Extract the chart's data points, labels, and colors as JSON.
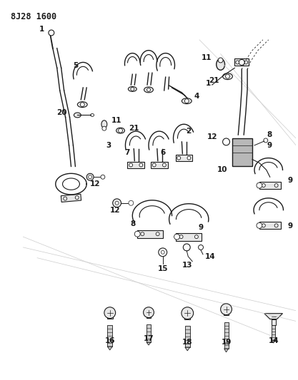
{
  "title": "8J28 1600",
  "bg_color": "#ffffff",
  "line_color": "#1a1a1a",
  "gray_fill": "#c8c8c8",
  "light_gray": "#e8e8e8",
  "title_fontsize": 8.5,
  "label_fontsize": 7,
  "bold_label_fontsize": 7.5,
  "fig_width": 4.17,
  "fig_height": 5.33,
  "dpi": 100
}
